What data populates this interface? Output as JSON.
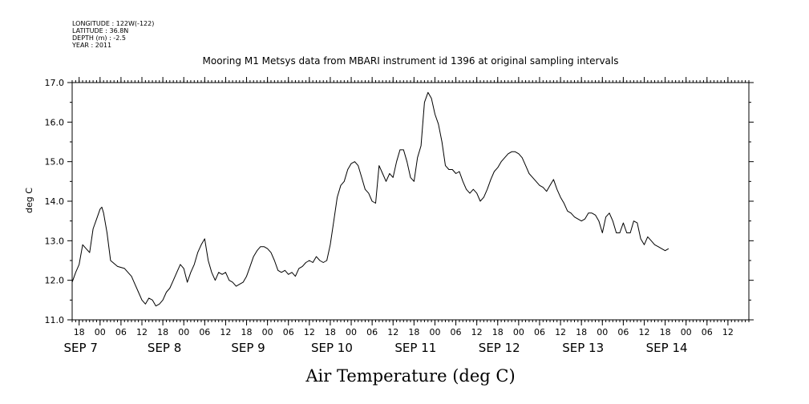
{
  "header": {
    "longitude": "LONGITUDE : 122W(-122)",
    "latitude": "LATITUDE : 36.8N",
    "depth": "DEPTH (m) : -2.5",
    "year": "YEAR : 2011"
  },
  "chart_data": {
    "type": "line",
    "title": "Mooring M1 Metsys data from MBARI instrument id 1396 at original sampling intervals",
    "xlabel": "Air Temperature (deg C)",
    "ylabel": "deg C",
    "ylim": [
      11.0,
      17.0
    ],
    "yticks": [
      "11.0",
      "12.0",
      "13.0",
      "14.0",
      "15.0",
      "16.0",
      "17.0"
    ],
    "x_unit": "hours since 2011-09-06 16:00",
    "xlim": [
      0,
      194
    ],
    "hour_ticks": [
      {
        "h": 2,
        "label": "18"
      },
      {
        "h": 8,
        "label": "00"
      },
      {
        "h": 14,
        "label": "06"
      },
      {
        "h": 20,
        "label": "12"
      },
      {
        "h": 26,
        "label": "18"
      },
      {
        "h": 32,
        "label": "00"
      },
      {
        "h": 38,
        "label": "06"
      },
      {
        "h": 44,
        "label": "12"
      },
      {
        "h": 50,
        "label": "18"
      },
      {
        "h": 56,
        "label": "00"
      },
      {
        "h": 62,
        "label": "06"
      },
      {
        "h": 68,
        "label": "12"
      },
      {
        "h": 74,
        "label": "18"
      },
      {
        "h": 80,
        "label": "00"
      },
      {
        "h": 86,
        "label": "06"
      },
      {
        "h": 92,
        "label": "12"
      },
      {
        "h": 98,
        "label": "18"
      },
      {
        "h": 104,
        "label": "00"
      },
      {
        "h": 110,
        "label": "06"
      },
      {
        "h": 116,
        "label": "12"
      },
      {
        "h": 122,
        "label": "18"
      },
      {
        "h": 128,
        "label": "00"
      },
      {
        "h": 134,
        "label": "06"
      },
      {
        "h": 140,
        "label": "12"
      },
      {
        "h": 146,
        "label": "18"
      },
      {
        "h": 152,
        "label": "00"
      },
      {
        "h": 158,
        "label": "06"
      },
      {
        "h": 164,
        "label": "12"
      },
      {
        "h": 170,
        "label": "18"
      },
      {
        "h": 176,
        "label": "00"
      },
      {
        "h": 182,
        "label": "06"
      },
      {
        "h": 188,
        "label": "12"
      }
    ],
    "day_labels": [
      {
        "h": 2,
        "label": "SEP  7"
      },
      {
        "h": 26,
        "label": "SEP  8"
      },
      {
        "h": 50,
        "label": "SEP  9"
      },
      {
        "h": 74,
        "label": "SEP 10"
      },
      {
        "h": 98,
        "label": "SEP 11"
      },
      {
        "h": 122,
        "label": "SEP 12"
      },
      {
        "h": 146,
        "label": "SEP 13"
      },
      {
        "h": 170,
        "label": "SEP 14"
      }
    ],
    "series": [
      {
        "points": [
          [
            0,
            11.95
          ],
          [
            1,
            12.2
          ],
          [
            2,
            12.4
          ],
          [
            3,
            12.9
          ],
          [
            4,
            12.8
          ],
          [
            5,
            12.7
          ],
          [
            6,
            13.3
          ],
          [
            7,
            13.55
          ],
          [
            8,
            13.8
          ],
          [
            8.5,
            13.85
          ],
          [
            9,
            13.7
          ],
          [
            10,
            13.2
          ],
          [
            11,
            12.5
          ],
          [
            13,
            12.35
          ],
          [
            15,
            12.3
          ],
          [
            16,
            12.2
          ],
          [
            17,
            12.1
          ],
          [
            18,
            11.9
          ],
          [
            19,
            11.7
          ],
          [
            20,
            11.5
          ],
          [
            21,
            11.4
          ],
          [
            22,
            11.55
          ],
          [
            23,
            11.5
          ],
          [
            24,
            11.35
          ],
          [
            25,
            11.4
          ],
          [
            26,
            11.5
          ],
          [
            27,
            11.7
          ],
          [
            28,
            11.8
          ],
          [
            29,
            12.0
          ],
          [
            30,
            12.2
          ],
          [
            31,
            12.4
          ],
          [
            32,
            12.3
          ],
          [
            33,
            11.95
          ],
          [
            34,
            12.2
          ],
          [
            35,
            12.4
          ],
          [
            36,
            12.7
          ],
          [
            37,
            12.9
          ],
          [
            38,
            13.05
          ],
          [
            39,
            12.5
          ],
          [
            40,
            12.2
          ],
          [
            41,
            12.0
          ],
          [
            42,
            12.2
          ],
          [
            43,
            12.15
          ],
          [
            44,
            12.2
          ],
          [
            45,
            12.0
          ],
          [
            46,
            11.95
          ],
          [
            47,
            11.85
          ],
          [
            48,
            11.9
          ],
          [
            49,
            11.95
          ],
          [
            50,
            12.1
          ],
          [
            51,
            12.35
          ],
          [
            52,
            12.6
          ],
          [
            53,
            12.75
          ],
          [
            54,
            12.85
          ],
          [
            55,
            12.85
          ],
          [
            56,
            12.8
          ],
          [
            57,
            12.7
          ],
          [
            58,
            12.5
          ],
          [
            59,
            12.25
          ],
          [
            60,
            12.2
          ],
          [
            61,
            12.25
          ],
          [
            62,
            12.15
          ],
          [
            63,
            12.2
          ],
          [
            64,
            12.1
          ],
          [
            65,
            12.3
          ],
          [
            66,
            12.35
          ],
          [
            67,
            12.45
          ],
          [
            68,
            12.5
          ],
          [
            69,
            12.45
          ],
          [
            70,
            12.6
          ],
          [
            71,
            12.5
          ],
          [
            72,
            12.45
          ],
          [
            73,
            12.5
          ],
          [
            74,
            12.9
          ],
          [
            75,
            13.5
          ],
          [
            76,
            14.1
          ],
          [
            77,
            14.4
          ],
          [
            78,
            14.5
          ],
          [
            79,
            14.8
          ],
          [
            80,
            14.95
          ],
          [
            81,
            15.0
          ],
          [
            82,
            14.9
          ],
          [
            83,
            14.6
          ],
          [
            84,
            14.3
          ],
          [
            85,
            14.2
          ],
          [
            86,
            14.0
          ],
          [
            87,
            13.95
          ],
          [
            88,
            14.9
          ],
          [
            89,
            14.7
          ],
          [
            90,
            14.5
          ],
          [
            91,
            14.7
          ],
          [
            92,
            14.6
          ],
          [
            93,
            15.0
          ],
          [
            94,
            15.3
          ],
          [
            95,
            15.3
          ],
          [
            96,
            15.0
          ],
          [
            97,
            14.6
          ],
          [
            98,
            14.5
          ],
          [
            99,
            15.1
          ],
          [
            100,
            15.4
          ],
          [
            101,
            16.5
          ],
          [
            102,
            16.75
          ],
          [
            103,
            16.6
          ],
          [
            104,
            16.2
          ],
          [
            105,
            15.95
          ],
          [
            106,
            15.5
          ],
          [
            107,
            14.9
          ],
          [
            108,
            14.8
          ],
          [
            109,
            14.8
          ],
          [
            110,
            14.7
          ],
          [
            111,
            14.75
          ],
          [
            112,
            14.5
          ],
          [
            113,
            14.3
          ],
          [
            114,
            14.2
          ],
          [
            115,
            14.3
          ],
          [
            116,
            14.2
          ],
          [
            117,
            14.0
          ],
          [
            118,
            14.1
          ],
          [
            119,
            14.3
          ],
          [
            120,
            14.55
          ],
          [
            121,
            14.75
          ],
          [
            122,
            14.85
          ],
          [
            123,
            15.0
          ],
          [
            124,
            15.1
          ],
          [
            125,
            15.2
          ],
          [
            126,
            15.25
          ],
          [
            127,
            15.25
          ],
          [
            128,
            15.2
          ],
          [
            129,
            15.1
          ],
          [
            130,
            14.9
          ],
          [
            131,
            14.7
          ],
          [
            132,
            14.6
          ],
          [
            133,
            14.5
          ],
          [
            134,
            14.4
          ],
          [
            135,
            14.35
          ],
          [
            136,
            14.25
          ],
          [
            137,
            14.4
          ],
          [
            138,
            14.55
          ],
          [
            139,
            14.3
          ],
          [
            140,
            14.1
          ],
          [
            141,
            13.95
          ],
          [
            142,
            13.75
          ],
          [
            143,
            13.7
          ],
          [
            144,
            13.6
          ],
          [
            145,
            13.55
          ],
          [
            146,
            13.5
          ],
          [
            147,
            13.55
          ],
          [
            148,
            13.7
          ],
          [
            149,
            13.7
          ],
          [
            150,
            13.65
          ],
          [
            151,
            13.5
          ],
          [
            152,
            13.2
          ],
          [
            153,
            13.6
          ],
          [
            154,
            13.7
          ],
          [
            155,
            13.5
          ],
          [
            156,
            13.2
          ],
          [
            157,
            13.2
          ],
          [
            158,
            13.45
          ],
          [
            159,
            13.2
          ],
          [
            160,
            13.2
          ],
          [
            161,
            13.5
          ],
          [
            162,
            13.45
          ],
          [
            163,
            13.05
          ],
          [
            164,
            12.9
          ],
          [
            165,
            13.1
          ],
          [
            166,
            13.0
          ],
          [
            167,
            12.9
          ],
          [
            168,
            12.85
          ],
          [
            169,
            12.8
          ],
          [
            170,
            12.75
          ],
          [
            171,
            12.8
          ]
        ]
      }
    ],
    "grid": false
  }
}
